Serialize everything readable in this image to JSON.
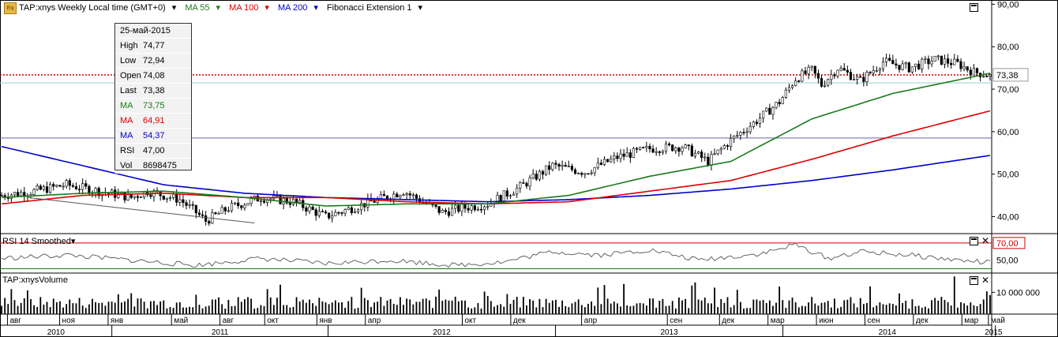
{
  "header": {
    "logo_text": "Eq",
    "symbol_info": "TAP:xnys Weekly Local time (GMT+0)",
    "ma55": "MA 55",
    "ma100": "MA 100",
    "ma200": "MA 200",
    "fib": "Fibonacci Extension 1",
    "colors": {
      "ma55": "#1a7a1a",
      "ma100": "#dd0000",
      "ma200": "#0000cc"
    }
  },
  "tooltip": {
    "date": "25-май-2015",
    "rows": [
      {
        "label": "High",
        "value": "74,77",
        "color": "#000000"
      },
      {
        "label": "Low",
        "value": "72,94",
        "color": "#000000"
      },
      {
        "label": "Open",
        "value": "74,08",
        "color": "#000000"
      },
      {
        "label": "Last",
        "value": "73,38",
        "color": "#000000"
      },
      {
        "label": "MA",
        "value": "73,75",
        "color": "#1a7a1a"
      },
      {
        "label": "MA",
        "value": "64,91",
        "color": "#dd0000"
      },
      {
        "label": "MA",
        "value": "54,37",
        "color": "#0000cc"
      },
      {
        "label": "RSI",
        "value": "47,00",
        "color": "#000000"
      },
      {
        "label": "Vol",
        "value": "8698475",
        "color": "#000000"
      }
    ]
  },
  "rsi_pane": {
    "title": "RSI 14 Smoothed",
    "ticks": [
      "70,00",
      "50,00"
    ]
  },
  "volume_pane": {
    "title": "TAP:xnysVolume",
    "ticks": [
      "10 000 000"
    ]
  },
  "chart_data": {
    "type": "candlestick",
    "price_axis": {
      "range": [
        36,
        91
      ],
      "ticks": [
        "90,00",
        "80,00",
        "70,00",
        "60,00",
        "50,00",
        "40,00"
      ]
    },
    "last_price_label": "73,38",
    "last_price": 73.38,
    "horizontal_lines": [
      71.5,
      58.5
    ],
    "months": [
      "авг",
      "ноя",
      "янв",
      "май",
      "авг",
      "окт",
      "янв",
      "апр",
      "окт",
      "дек",
      "апр",
      "сен",
      "дек",
      "мар",
      "июн",
      "сен",
      "дек",
      "мар",
      "май"
    ],
    "years": [
      "2010",
      "2011",
      "2012",
      "2013",
      "2014",
      "2015"
    ],
    "price_path": [
      [
        0,
        45
      ],
      [
        10,
        46
      ],
      [
        20,
        47.5
      ],
      [
        30,
        46
      ],
      [
        40,
        44.5
      ],
      [
        45,
        46
      ],
      [
        50,
        45
      ],
      [
        55,
        44
      ],
      [
        60,
        41
      ],
      [
        63,
        39
      ],
      [
        70,
        42
      ],
      [
        80,
        44.5
      ],
      [
        90,
        43.5
      ],
      [
        100,
        40
      ],
      [
        108,
        42
      ],
      [
        116,
        44
      ],
      [
        124,
        46
      ],
      [
        130,
        43.5
      ],
      [
        136,
        41
      ],
      [
        142,
        42
      ],
      [
        150,
        43
      ],
      [
        160,
        47
      ],
      [
        170,
        52
      ],
      [
        180,
        50.5
      ],
      [
        190,
        54
      ],
      [
        200,
        56
      ],
      [
        210,
        56.5
      ],
      [
        218,
        53
      ],
      [
        225,
        58
      ],
      [
        232,
        62
      ],
      [
        240,
        67
      ],
      [
        245,
        72.5
      ],
      [
        250,
        74.5
      ],
      [
        253,
        71
      ],
      [
        258,
        75
      ],
      [
        265,
        72
      ],
      [
        272,
        76.5
      ],
      [
        280,
        75
      ],
      [
        288,
        77
      ],
      [
        295,
        76
      ],
      [
        300,
        74
      ],
      [
        305,
        73.4
      ]
    ],
    "ma55_path": [
      [
        0,
        44.5
      ],
      [
        25,
        45.5
      ],
      [
        50,
        46
      ],
      [
        75,
        44.5
      ],
      [
        100,
        42.5
      ],
      [
        125,
        43
      ],
      [
        150,
        43
      ],
      [
        175,
        45
      ],
      [
        200,
        49.5
      ],
      [
        225,
        53
      ],
      [
        250,
        63
      ],
      [
        275,
        69
      ],
      [
        305,
        73.75
      ]
    ],
    "ma100_path": [
      [
        0,
        43
      ],
      [
        25,
        45
      ],
      [
        50,
        45.5
      ],
      [
        75,
        44.5
      ],
      [
        100,
        44.5
      ],
      [
        125,
        43.5
      ],
      [
        150,
        43
      ],
      [
        175,
        43.5
      ],
      [
        200,
        46
      ],
      [
        225,
        48.5
      ],
      [
        250,
        53.5
      ],
      [
        275,
        59
      ],
      [
        305,
        64.9
      ]
    ],
    "ma200_path": [
      [
        0,
        56.5
      ],
      [
        25,
        52
      ],
      [
        50,
        47.5
      ],
      [
        75,
        45.5
      ],
      [
        100,
        44.5
      ],
      [
        125,
        44
      ],
      [
        150,
        43.5
      ],
      [
        175,
        44
      ],
      [
        200,
        45
      ],
      [
        225,
        46.5
      ],
      [
        250,
        48.5
      ],
      [
        275,
        51
      ],
      [
        305,
        54.4
      ]
    ],
    "fib_line": [
      [
        8,
        44.5
      ],
      [
        78,
        38.5
      ]
    ],
    "rsi_range": [
      35,
      80
    ],
    "rsi_path": [
      [
        0,
        52
      ],
      [
        20,
        56
      ],
      [
        40,
        50
      ],
      [
        60,
        44
      ],
      [
        80,
        52
      ],
      [
        100,
        46
      ],
      [
        120,
        50
      ],
      [
        140,
        44
      ],
      [
        155,
        48
      ],
      [
        170,
        60
      ],
      [
        185,
        56
      ],
      [
        200,
        62
      ],
      [
        215,
        50
      ],
      [
        235,
        58
      ],
      [
        245,
        68
      ],
      [
        255,
        52
      ],
      [
        265,
        60
      ],
      [
        280,
        56
      ],
      [
        295,
        50
      ],
      [
        305,
        47
      ]
    ],
    "volume_ticks": [
      10000000
    ],
    "volume_range": [
      0,
      17000000
    ]
  }
}
